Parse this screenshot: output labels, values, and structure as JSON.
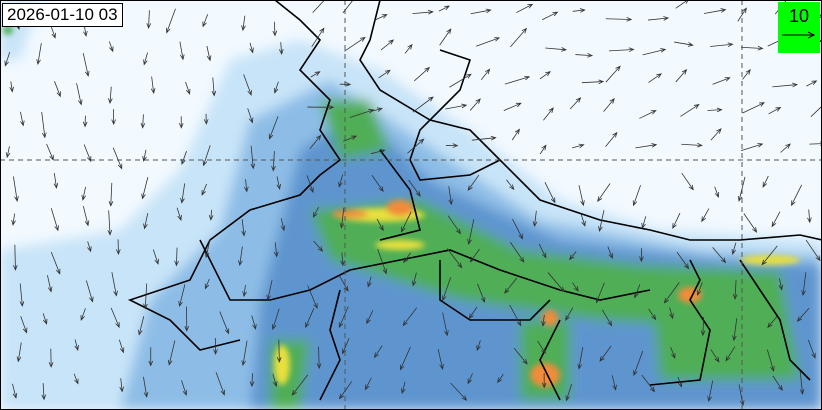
{
  "timestamp": "2026-01-10 03",
  "wind_legend": {
    "value": "10",
    "arrow_icon": "wind-reference-arrow",
    "background_color": "#00ff00"
  },
  "colors": {
    "background": "#f2f9ff",
    "light": "#c8e4f8",
    "mid": "#7fb3df",
    "dark": "#3a73b8",
    "green": "#3ea84a",
    "yellow": "#e8e03c",
    "orange": "#f08c3a"
  }
}
